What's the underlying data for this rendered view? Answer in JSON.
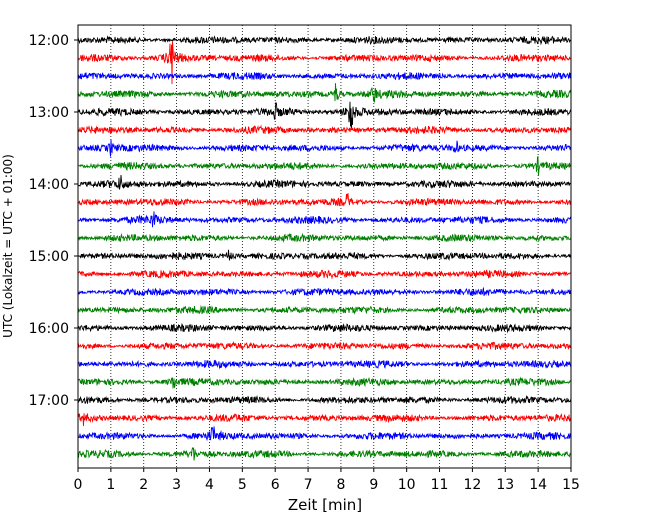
{
  "chart_data": {
    "type": "line",
    "subtype": "helicorder",
    "xlabel": "Zeit  [min]",
    "ylabel": "UTC (Lokalzeit = UTC + 01:00)",
    "xlim": [
      0,
      15
    ],
    "x_ticks": [
      0,
      1,
      2,
      3,
      4,
      5,
      6,
      7,
      8,
      9,
      10,
      11,
      12,
      13,
      14,
      15
    ],
    "x_grid": "dotted vertical lines at each minute",
    "y_ticks": [
      "12:00",
      "13:00",
      "14:00",
      "15:00",
      "16:00",
      "17:00"
    ],
    "trace_interval_min": 15,
    "trace_start": "12:00",
    "trace_count": 24,
    "trace_colors": [
      "#000000",
      "#ff0000",
      "#0000ff",
      "#008000"
    ],
    "events": [
      {
        "trace": 1,
        "minute": 2.85,
        "amplitude": 2.4
      },
      {
        "trace": 3,
        "minute": 7.85,
        "amplitude": 1.0
      },
      {
        "trace": 3,
        "minute": 9.0,
        "amplitude": 0.8
      },
      {
        "trace": 4,
        "minute": 8.3,
        "amplitude": 2.2
      },
      {
        "trace": 4,
        "minute": 6.0,
        "amplitude": 0.6
      },
      {
        "trace": 6,
        "minute": 1.0,
        "amplitude": 0.6
      },
      {
        "trace": 6,
        "minute": 11.5,
        "amplitude": 0.6
      },
      {
        "trace": 7,
        "minute": 14.0,
        "amplitude": 0.6
      },
      {
        "trace": 8,
        "minute": 1.3,
        "amplitude": 0.6
      },
      {
        "trace": 9,
        "minute": 8.2,
        "amplitude": 0.6
      },
      {
        "trace": 10,
        "minute": 2.3,
        "amplitude": 0.6
      },
      {
        "trace": 12,
        "minute": 4.6,
        "amplitude": 0.6
      },
      {
        "trace": 19,
        "minute": 2.9,
        "amplitude": 0.6
      },
      {
        "trace": 21,
        "minute": 0.2,
        "amplitude": 0.6
      },
      {
        "trace": 22,
        "minute": 4.1,
        "amplitude": 0.8
      },
      {
        "trace": 23,
        "minute": 3.5,
        "amplitude": 0.6
      }
    ]
  }
}
